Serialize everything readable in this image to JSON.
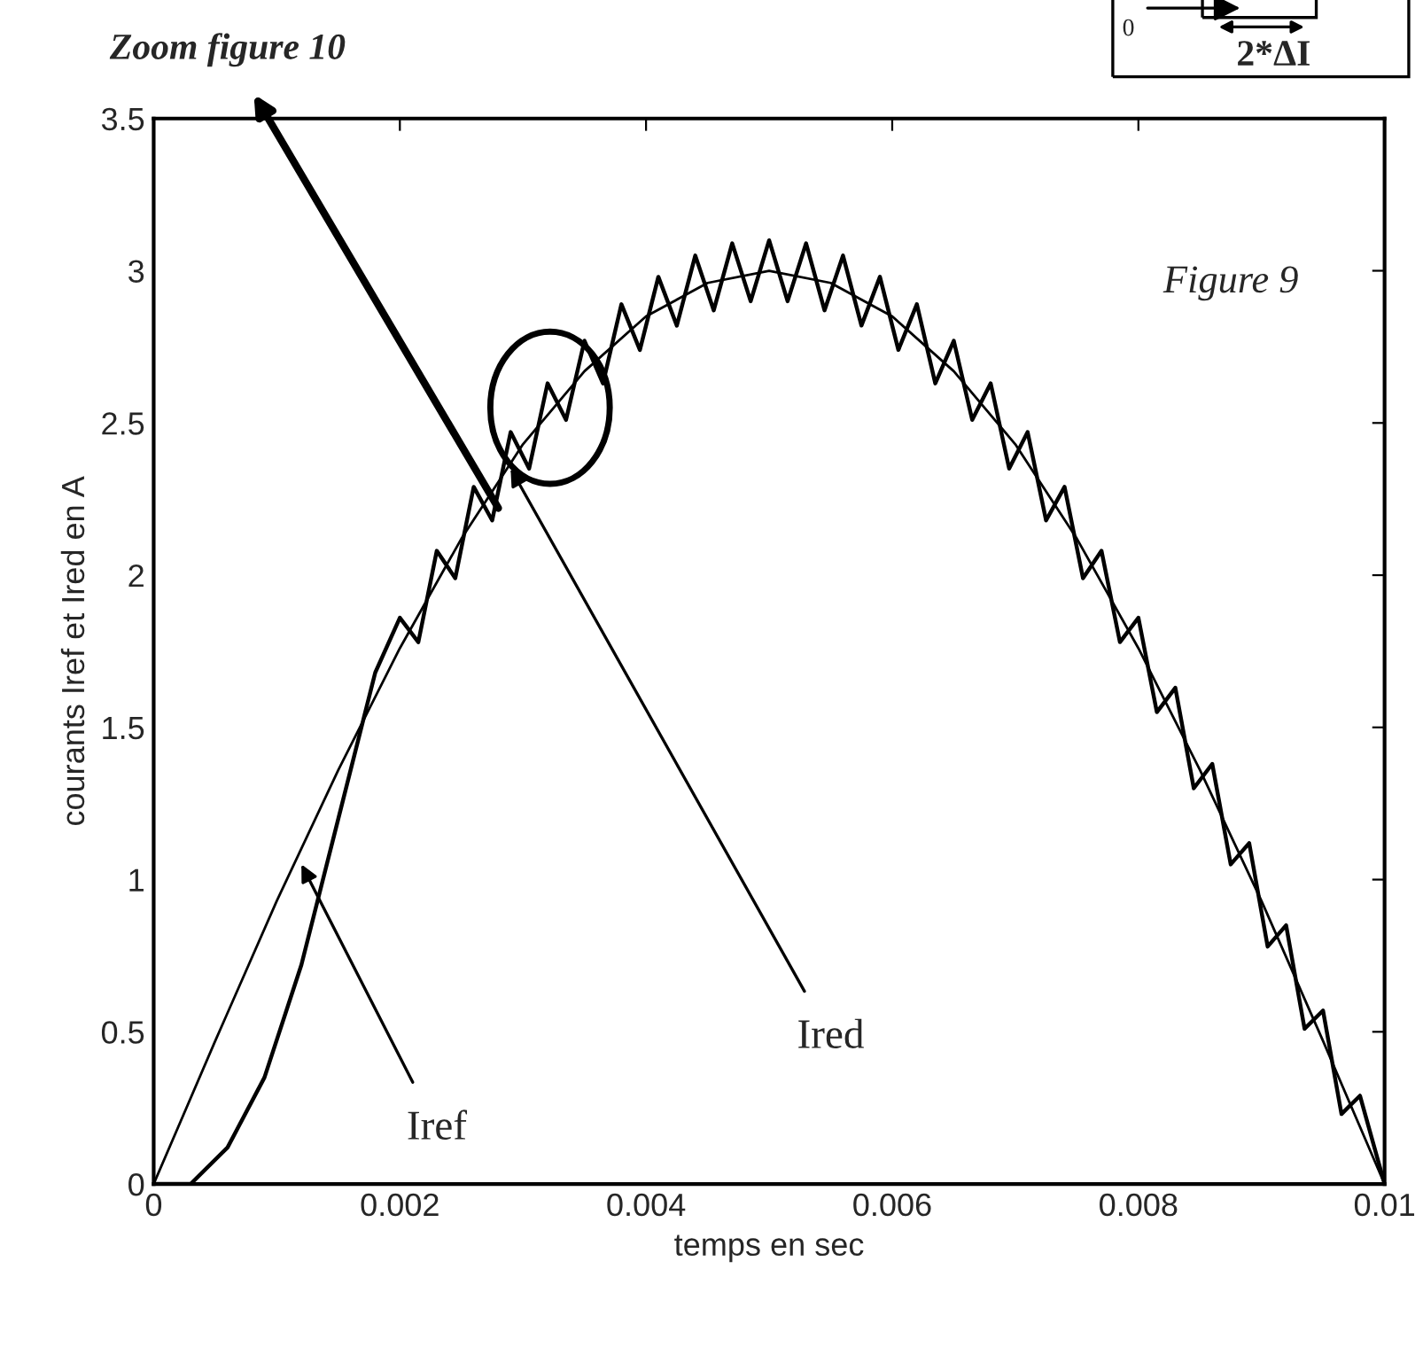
{
  "chart_data": {
    "type": "line",
    "xlabel": "temps en sec",
    "ylabel": "courants Iref et Ired en A",
    "xlim": [
      0,
      0.01
    ],
    "ylim": [
      0,
      3.5
    ],
    "xticks": [
      0,
      0.002,
      0.004,
      0.006,
      0.008,
      0.01
    ],
    "yticks": [
      0,
      0.5,
      1,
      1.5,
      2,
      2.5,
      3,
      3.5
    ],
    "grid": false,
    "legend": false,
    "series": [
      {
        "color": "#000000",
        "line_style": "solid",
        "x": [
          0,
          0.0005,
          0.001,
          0.0015,
          0.002,
          0.0025,
          0.003,
          0.0035,
          0.004,
          0.0045,
          0.005,
          0.0055,
          0.006,
          0.0065,
          0.007,
          0.0075,
          0.008,
          0.0085,
          0.009,
          0.0095,
          0.01
        ],
        "values": [
          0,
          0.47,
          0.93,
          1.36,
          1.76,
          2.12,
          2.43,
          2.67,
          2.85,
          2.96,
          3,
          2.96,
          2.85,
          2.67,
          2.43,
          2.12,
          1.76,
          1.36,
          0.93,
          0.47,
          0
        ]
      },
      {
        "color": "#000000",
        "line_style": "solid",
        "x": [
          0,
          0.0003,
          0.0006,
          0.0009,
          0.0012,
          0.0015,
          0.0018,
          0.002,
          0.00215,
          0.0023,
          0.00245,
          0.0026,
          0.00275,
          0.0029,
          0.00305,
          0.0032,
          0.00335,
          0.0035,
          0.00365,
          0.0038,
          0.00395,
          0.0041,
          0.00425,
          0.0044,
          0.00455,
          0.0047,
          0.00485,
          0.005,
          0.00515,
          0.0053,
          0.00545,
          0.0056,
          0.00575,
          0.0059,
          0.00605,
          0.0062,
          0.00635,
          0.0065,
          0.00665,
          0.0068,
          0.00695,
          0.0071,
          0.00725,
          0.0074,
          0.00755,
          0.0077,
          0.00785,
          0.008,
          0.00815,
          0.0083,
          0.00845,
          0.0086,
          0.00875,
          0.0089,
          0.00905,
          0.0092,
          0.00935,
          0.0095,
          0.00965,
          0.0098,
          0.01
        ],
        "values": [
          0,
          0,
          0.12,
          0.35,
          0.72,
          1.2,
          1.68,
          1.86,
          1.78,
          2.08,
          1.99,
          2.29,
          2.18,
          2.47,
          2.35,
          2.63,
          2.51,
          2.77,
          2.63,
          2.89,
          2.74,
          2.98,
          2.82,
          3.05,
          2.87,
          3.09,
          2.9,
          3.1,
          2.9,
          3.09,
          2.87,
          3.05,
          2.82,
          2.98,
          2.74,
          2.89,
          2.63,
          2.77,
          2.51,
          2.63,
          2.35,
          2.47,
          2.18,
          2.29,
          1.99,
          2.08,
          1.78,
          1.86,
          1.55,
          1.63,
          1.3,
          1.38,
          1.05,
          1.12,
          0.78,
          0.85,
          0.51,
          0.57,
          0.23,
          0.29,
          0
        ]
      }
    ],
    "annotations": [
      {
        "text": "Zoom figure 10",
        "x": 0.0028,
        "y": 2.22
      },
      "Figure 9",
      {
        "text": "Iref",
        "x": 0.0012,
        "y": 1.05
      },
      {
        "text": "Ired",
        "x": 0.0029,
        "y": 2.35
      },
      "2*ΔI",
      "0"
    ]
  }
}
